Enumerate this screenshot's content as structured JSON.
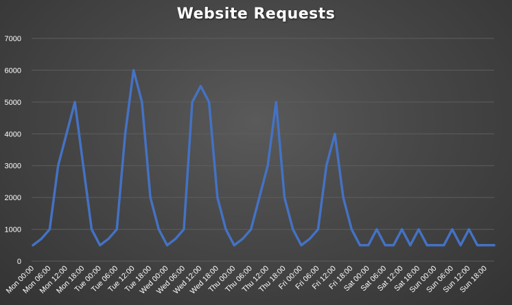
{
  "chart_data": {
    "type": "line",
    "title": "Website Requests",
    "xlabel": "",
    "ylabel": "",
    "ylim": [
      0,
      7000
    ],
    "yticks": [
      0,
      1000,
      2000,
      3000,
      4000,
      5000,
      6000,
      7000
    ],
    "grid": true,
    "legend": "none",
    "x_tick_labels": [
      "Mon 00:00",
      "Mon 06:00",
      "Mon 12:00",
      "Mon 18:00",
      "Tue 00:00",
      "Tue 06:00",
      "Tue 12:00",
      "Tue 18:00",
      "Wed 00:00",
      "Wed 06:00",
      "Wed 12:00",
      "Wed 18:00",
      "Thu 00:00",
      "Thu 06:00",
      "Thu 12:00",
      "Thu 18:00",
      "Fri 00:00",
      "Fri 06:00",
      "Fri 12:00",
      "Fri 18:00",
      "Sat 00:00",
      "Sat 06:00",
      "Sat 12:00",
      "Sat 18:00",
      "Sun 00:00",
      "Sun 06:00",
      "Sun 12:00",
      "Sun 18:00"
    ],
    "series": [
      {
        "values": [
          500,
          700,
          1000,
          3000,
          4000,
          5000,
          3000,
          1000,
          500,
          700,
          1000,
          4000,
          6000,
          5000,
          2000,
          1000,
          500,
          700,
          1000,
          5000,
          5500,
          5000,
          2000,
          1000,
          500,
          700,
          1000,
          2000,
          3000,
          5000,
          2000,
          1000,
          500,
          700,
          1000,
          3000,
          4000,
          2000,
          1000,
          500,
          500,
          1000,
          500,
          500,
          1000,
          500,
          1000,
          500,
          500,
          500,
          1000,
          500,
          1000,
          500,
          500,
          500
        ]
      }
    ]
  },
  "colors": {
    "line": "#4472c4",
    "grid": "#5e5e5e",
    "tick_label": "#ffffff"
  }
}
